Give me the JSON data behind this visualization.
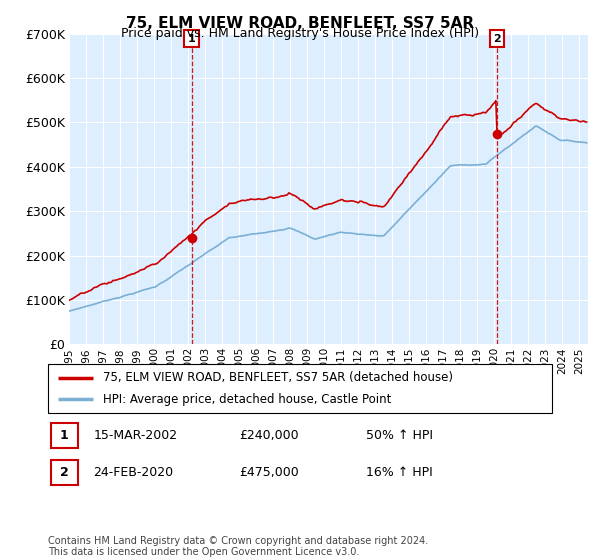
{
  "title": "75, ELM VIEW ROAD, BENFLEET, SS7 5AR",
  "subtitle": "Price paid vs. HM Land Registry's House Price Index (HPI)",
  "hpi_label": "HPI: Average price, detached house, Castle Point",
  "price_label": "75, ELM VIEW ROAD, BENFLEET, SS7 5AR (detached house)",
  "sale1_date": "15-MAR-2002",
  "sale1_price": 240000,
  "sale1_pct": "50% ↑ HPI",
  "sale2_date": "24-FEB-2020",
  "sale2_price": 475000,
  "sale2_pct": "16% ↑ HPI",
  "footer": "Contains HM Land Registry data © Crown copyright and database right 2024.\nThis data is licensed under the Open Government Licence v3.0.",
  "red_color": "#cc0000",
  "blue_color": "#7bafd4",
  "bg_color": "#ddeeff",
  "ylim": [
    0,
    700000
  ],
  "sale1_year": 2002.2,
  "sale2_year": 2020.15,
  "xmin": 1995.0,
  "xmax": 2025.5
}
